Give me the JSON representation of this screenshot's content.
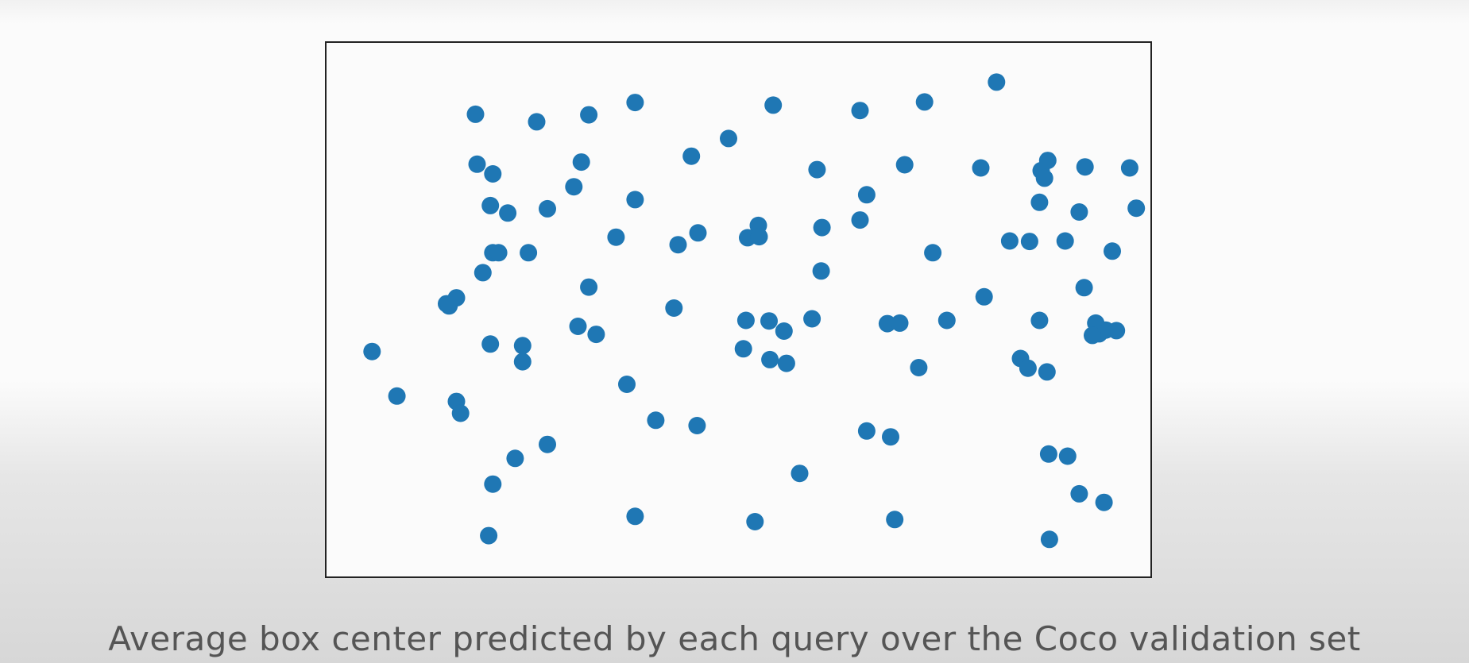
{
  "caption": "Average box center predicted by each query over the Coco validation set",
  "chart_data": {
    "type": "scatter",
    "title": "",
    "xlabel": "",
    "ylabel": "",
    "xlim": [
      0,
      1
    ],
    "ylim": [
      0,
      1
    ],
    "axis_ticks": "none",
    "grid": false,
    "marker_color": "#1f77b4",
    "series": [
      {
        "x": [
          0.182,
          0.256,
          0.319,
          0.375,
          0.542,
          0.647,
          0.725,
          0.812,
          0.184,
          0.203,
          0.31,
          0.301,
          0.443,
          0.488,
          0.595,
          0.701,
          0.793,
          0.866,
          0.874,
          0.919,
          0.973,
          0.87,
          0.2,
          0.221,
          0.269,
          0.655,
          0.375,
          0.524,
          0.864,
          0.828,
          0.981,
          0.203,
          0.21,
          0.246,
          0.352,
          0.427,
          0.451,
          0.511,
          0.525,
          0.601,
          0.647,
          0.735,
          0.852,
          0.895,
          0.912,
          0.191,
          0.319,
          0.422,
          0.6,
          0.797,
          0.952,
          0.918,
          0.147,
          0.15,
          0.159,
          0.306,
          0.328,
          0.509,
          0.555,
          0.537,
          0.589,
          0.68,
          0.695,
          0.752,
          0.864,
          0.944,
          0.957,
          0.932,
          0.936,
          0.928,
          0.2,
          0.239,
          0.239,
          0.057,
          0.506,
          0.538,
          0.558,
          0.718,
          0.873,
          0.841,
          0.85,
          0.087,
          0.159,
          0.164,
          0.365,
          0.4,
          0.45,
          0.684,
          0.655,
          0.269,
          0.23,
          0.574,
          0.875,
          0.898,
          0.203,
          0.375,
          0.52,
          0.912,
          0.198,
          0.876,
          0.942,
          0.689
        ],
        "y": [
          0.864,
          0.85,
          0.863,
          0.886,
          0.881,
          0.871,
          0.887,
          0.924,
          0.771,
          0.753,
          0.775,
          0.729,
          0.786,
          0.819,
          0.761,
          0.77,
          0.764,
          0.759,
          0.778,
          0.766,
          0.764,
          0.745,
          0.694,
          0.68,
          0.688,
          0.714,
          0.705,
          0.657,
          0.7,
          0.628,
          0.689,
          0.606,
          0.606,
          0.606,
          0.635,
          0.621,
          0.643,
          0.634,
          0.636,
          0.653,
          0.667,
          0.606,
          0.627,
          0.628,
          0.682,
          0.569,
          0.542,
          0.503,
          0.572,
          0.524,
          0.609,
          0.541,
          0.511,
          0.507,
          0.522,
          0.469,
          0.454,
          0.48,
          0.46,
          0.479,
          0.483,
          0.474,
          0.475,
          0.48,
          0.48,
          0.462,
          0.461,
          0.475,
          0.455,
          0.452,
          0.436,
          0.433,
          0.403,
          0.422,
          0.427,
          0.407,
          0.4,
          0.392,
          0.384,
          0.409,
          0.391,
          0.339,
          0.329,
          0.307,
          0.361,
          0.294,
          0.284,
          0.263,
          0.274,
          0.249,
          0.223,
          0.195,
          0.231,
          0.227,
          0.175,
          0.115,
          0.105,
          0.157,
          0.079,
          0.072,
          0.141,
          0.109
        ]
      }
    ]
  }
}
